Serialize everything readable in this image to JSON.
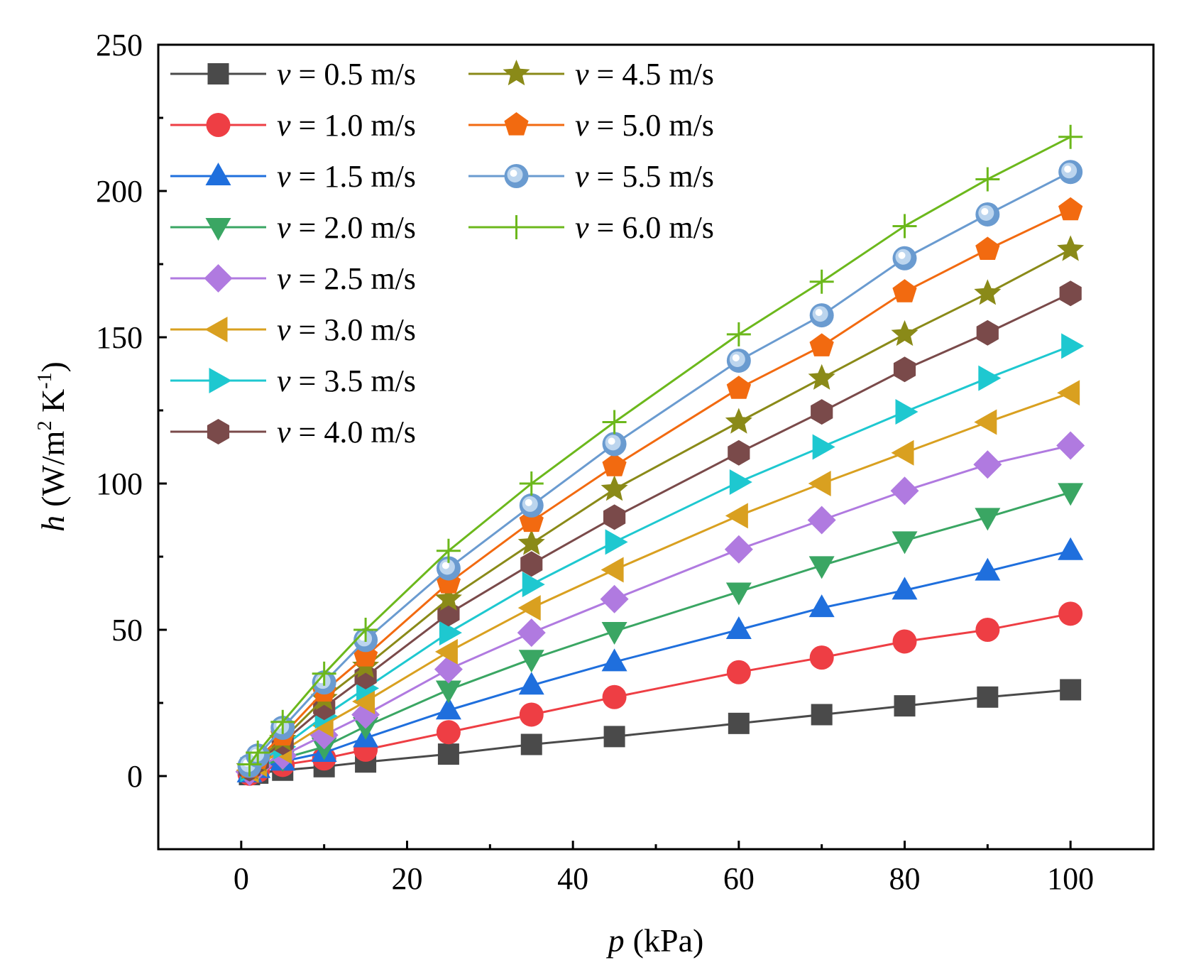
{
  "chart_data": {
    "type": "line",
    "title": "",
    "xlabel": {
      "symbol": "p",
      "unit": "(kPa)"
    },
    "ylabel": {
      "symbol": "h",
      "unit_main": "(W/m",
      "sup1": "2",
      "unit_mid": " K",
      "sup2": "-1",
      "unit_end": ")"
    },
    "xlim": [
      -10,
      110
    ],
    "ylim": [
      -25,
      250
    ],
    "xticks": [
      0,
      20,
      40,
      60,
      80,
      100
    ],
    "yticks": [
      0,
      50,
      100,
      150,
      200,
      250
    ],
    "x": [
      1,
      2,
      5,
      10,
      15,
      25,
      35,
      45,
      60,
      70,
      80,
      90,
      100
    ],
    "legend_position": "top-left",
    "series": [
      {
        "name": "v = 0.5 m/s",
        "v_symbol": "v",
        "v_text": " = 0.5 m/s",
        "color": "#4a4a4a",
        "marker": "square",
        "values": [
          0.5,
          1.0,
          2.0,
          3.2,
          4.8,
          7.5,
          10.8,
          13.5,
          18.0,
          21.0,
          24.0,
          27.0,
          29.5
        ]
      },
      {
        "name": "v = 1.0 m/s",
        "v_symbol": "v",
        "v_text": " = 1.0 m/s",
        "color": "#ee3e44",
        "marker": "circle",
        "values": [
          0.8,
          1.8,
          3.8,
          6.0,
          9.0,
          15.0,
          21.0,
          27.0,
          35.5,
          40.5,
          46.0,
          50.0,
          55.5
        ]
      },
      {
        "name": "v = 1.5 m/s",
        "v_symbol": "v",
        "v_text": " = 1.5 m/s",
        "color": "#1f6fdd",
        "marker": "triangle-up",
        "values": [
          1.0,
          2.5,
          5.0,
          8.0,
          13.0,
          22.5,
          31.0,
          39.0,
          50.0,
          57.5,
          63.5,
          70.0,
          77.0
        ]
      },
      {
        "name": "v = 2.0 m/s",
        "v_symbol": "v",
        "v_text": " = 2.0 m/s",
        "color": "#3aa663",
        "marker": "triangle-down",
        "values": [
          1.2,
          3.0,
          6.0,
          10.0,
          17.0,
          29.5,
          40.0,
          49.5,
          63.0,
          72.0,
          80.5,
          88.5,
          97.0
        ]
      },
      {
        "name": "v = 2.5 m/s",
        "v_symbol": "v",
        "v_text": " = 2.5 m/s",
        "color": "#b07ae0",
        "marker": "diamond",
        "values": [
          1.5,
          3.5,
          7.0,
          14.0,
          21.0,
          36.5,
          49.0,
          60.5,
          77.5,
          87.5,
          97.5,
          106.5,
          113.0
        ]
      },
      {
        "name": "v = 3.0 m/s",
        "v_symbol": "v",
        "v_text": " = 3.0 m/s",
        "color": "#d9a020",
        "marker": "triangle-left",
        "values": [
          2.0,
          4.0,
          8.5,
          17.5,
          25.5,
          42.5,
          57.5,
          70.5,
          89.0,
          100.0,
          110.5,
          121.0,
          131.0
        ]
      },
      {
        "name": "v = 3.5 m/s",
        "v_symbol": "v",
        "v_text": " = 3.5 m/s",
        "color": "#1ec8d0",
        "marker": "triangle-right",
        "values": [
          2.2,
          4.5,
          10.0,
          20.5,
          30.0,
          49.0,
          65.5,
          80.0,
          100.5,
          112.5,
          124.5,
          136.0,
          147.0
        ]
      },
      {
        "name": "v = 4.0 m/s",
        "v_symbol": "v",
        "v_text": " = 4.0 m/s",
        "color": "#7a4a4a",
        "marker": "hexagon",
        "values": [
          2.5,
          5.0,
          11.5,
          23.5,
          34.0,
          55.5,
          72.5,
          88.5,
          110.5,
          124.5,
          139.0,
          151.5,
          165.0
        ]
      },
      {
        "name": "v = 4.5 m/s",
        "v_symbol": "v",
        "v_text": " = 4.5 m/s",
        "color": "#8a8a18",
        "marker": "star",
        "values": [
          2.8,
          5.5,
          12.5,
          26.5,
          37.5,
          60.5,
          79.5,
          98.0,
          121.0,
          136.0,
          151.0,
          165.0,
          180.0
        ]
      },
      {
        "name": "v = 5.0 m/s",
        "v_symbol": "v",
        "v_text": " = 5.0 m/s",
        "color": "#f26a10",
        "marker": "pentagon",
        "values": [
          3.0,
          6.0,
          14.0,
          29.0,
          41.0,
          66.0,
          87.0,
          106.0,
          132.5,
          147.0,
          165.5,
          180.0,
          193.5
        ]
      },
      {
        "name": "v = 5.5 m/s",
        "v_symbol": "v",
        "v_text": " = 5.5 m/s",
        "color": "#6a9bd0",
        "marker": "sphere",
        "values": [
          3.5,
          7.0,
          16.5,
          32.0,
          46.5,
          71.0,
          92.5,
          113.5,
          142.0,
          157.5,
          177.0,
          192.0,
          206.5
        ]
      },
      {
        "name": "v = 6.0 m/s",
        "v_symbol": "v",
        "v_text": " = 6.0 m/s",
        "color": "#6cb81c",
        "marker": "plus",
        "values": [
          4.0,
          8.0,
          18.5,
          35.0,
          50.0,
          77.0,
          100.0,
          121.0,
          151.0,
          169.0,
          188.0,
          204.0,
          218.5
        ]
      }
    ]
  }
}
